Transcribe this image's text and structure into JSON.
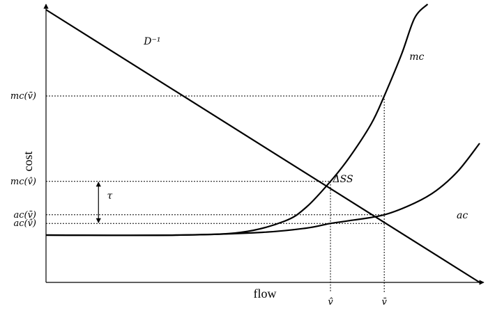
{
  "chart_data": {
    "type": "line",
    "xlabel": "flow",
    "ylabel": "cost",
    "xlim": [
      0,
      1
    ],
    "ylim": [
      0,
      1
    ],
    "x_ticks": [
      {
        "label": "v̂",
        "value": 0.656
      },
      {
        "label": "v̄",
        "value": 0.78
      }
    ],
    "y_ticks": [
      {
        "label": "mc(v̄)",
        "value": 0.67
      },
      {
        "label": "mc(v̂)",
        "value": 0.363
      },
      {
        "label": "ac(v̄)",
        "value": 0.243
      },
      {
        "label": "ac(v̂)",
        "value": 0.212
      }
    ],
    "series": [
      {
        "name": "D⁻¹",
        "x": [
          0,
          1
        ],
        "y": [
          0.98,
          0.0
        ]
      },
      {
        "name": "mc",
        "x": [
          0,
          0.3,
          0.45,
          0.55,
          0.6,
          0.656,
          0.7,
          0.75,
          0.78,
          0.82,
          0.85,
          0.88
        ],
        "y": [
          0.17,
          0.17,
          0.18,
          0.22,
          0.27,
          0.363,
          0.45,
          0.57,
          0.67,
          0.82,
          0.95,
          1.0
        ]
      },
      {
        "name": "ac",
        "x": [
          0,
          0.3,
          0.5,
          0.6,
          0.656,
          0.7,
          0.78,
          0.85,
          0.9,
          0.95,
          1.0
        ],
        "y": [
          0.17,
          0.17,
          0.18,
          0.195,
          0.212,
          0.222,
          0.243,
          0.285,
          0.33,
          0.4,
          0.5
        ]
      }
    ],
    "annotations": [
      {
        "text": "D⁻¹",
        "x": 0.245,
        "y": 0.855
      },
      {
        "text": "mc",
        "x": 0.855,
        "y": 0.8
      },
      {
        "text": "ac",
        "x": 0.96,
        "y": 0.23
      },
      {
        "text": "ΔSS",
        "x": 0.685,
        "y": 0.36
      },
      {
        "text": "τ",
        "x": 0.147,
        "y": 0.3
      }
    ]
  }
}
